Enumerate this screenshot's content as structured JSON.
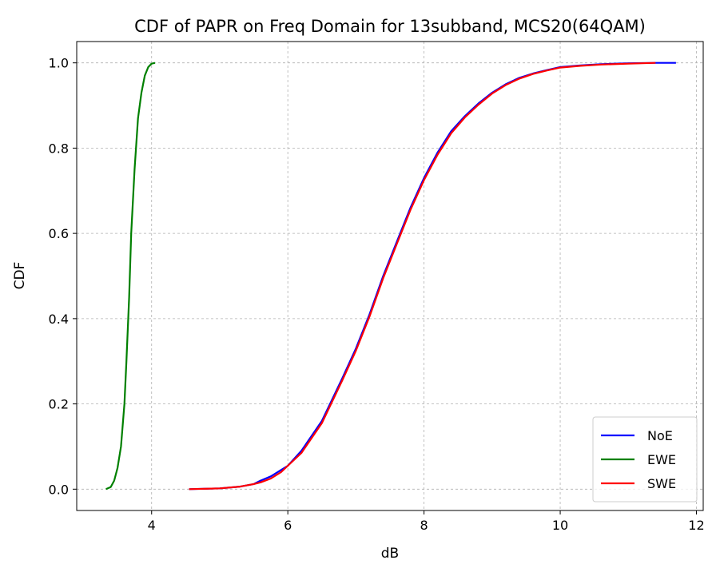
{
  "chart_data": {
    "type": "line",
    "title": "CDF of PAPR on Freq Domain for 13subband, MCS20(64QAM)",
    "xlabel": "dB",
    "ylabel": "CDF",
    "xlim": [
      2.9,
      12.1
    ],
    "ylim": [
      -0.05,
      1.05
    ],
    "xticks": [
      4,
      6,
      8,
      10,
      12
    ],
    "yticks": [
      0.0,
      0.2,
      0.4,
      0.6,
      0.8,
      1.0
    ],
    "xtick_labels": [
      "4",
      "6",
      "8",
      "10",
      "12"
    ],
    "ytick_labels": [
      "0.0",
      "0.2",
      "0.4",
      "0.6",
      "0.8",
      "1.0"
    ],
    "grid": true,
    "legend_position": "bottom-right",
    "series": [
      {
        "name": "NoE",
        "color": "#0000ff",
        "x": [
          4.55,
          5.0,
          5.3,
          5.5,
          5.6,
          5.75,
          5.9,
          6.0,
          6.2,
          6.5,
          6.8,
          7.0,
          7.2,
          7.4,
          7.6,
          7.8,
          8.0,
          8.2,
          8.4,
          8.6,
          8.8,
          9.0,
          9.2,
          9.4,
          9.6,
          9.8,
          10.0,
          10.3,
          10.6,
          11.0,
          11.4,
          11.7
        ],
        "y": [
          0.0,
          0.002,
          0.006,
          0.012,
          0.02,
          0.03,
          0.045,
          0.055,
          0.09,
          0.16,
          0.26,
          0.33,
          0.41,
          0.5,
          0.58,
          0.66,
          0.73,
          0.79,
          0.84,
          0.875,
          0.905,
          0.93,
          0.95,
          0.965,
          0.975,
          0.983,
          0.99,
          0.994,
          0.997,
          0.999,
          1.0,
          1.0
        ]
      },
      {
        "name": "EWE",
        "color": "#008000",
        "x": [
          3.33,
          3.4,
          3.45,
          3.5,
          3.55,
          3.6,
          3.63,
          3.67,
          3.7,
          3.75,
          3.8,
          3.85,
          3.9,
          3.95,
          4.0,
          4.05
        ],
        "y": [
          0.0,
          0.005,
          0.02,
          0.05,
          0.1,
          0.2,
          0.3,
          0.45,
          0.6,
          0.75,
          0.87,
          0.93,
          0.97,
          0.99,
          0.998,
          1.0
        ]
      },
      {
        "name": "SWE",
        "color": "#ff0000",
        "x": [
          4.55,
          5.0,
          5.3,
          5.5,
          5.6,
          5.75,
          5.9,
          6.0,
          6.2,
          6.5,
          6.8,
          7.0,
          7.2,
          7.4,
          7.6,
          7.8,
          8.0,
          8.2,
          8.4,
          8.6,
          8.8,
          9.0,
          9.2,
          9.4,
          9.6,
          9.8,
          10.0,
          10.3,
          10.6,
          11.0,
          11.4
        ],
        "y": [
          0.0,
          0.002,
          0.006,
          0.012,
          0.016,
          0.025,
          0.04,
          0.055,
          0.085,
          0.155,
          0.255,
          0.325,
          0.405,
          0.495,
          0.575,
          0.655,
          0.725,
          0.785,
          0.835,
          0.872,
          0.902,
          0.928,
          0.948,
          0.963,
          0.974,
          0.982,
          0.989,
          0.993,
          0.996,
          0.998,
          1.0
        ]
      }
    ]
  }
}
